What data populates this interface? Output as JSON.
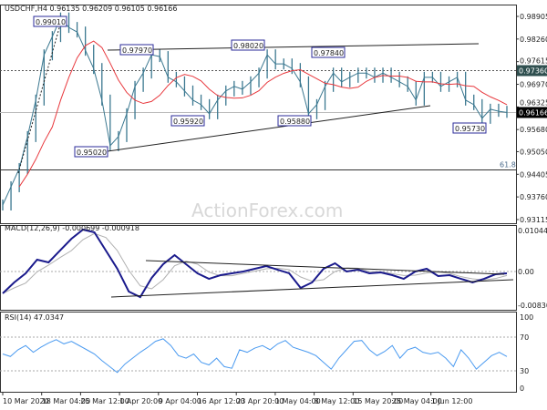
{
  "chart_data": [
    {
      "type": "line",
      "title": "USDCHF,H4  0.96135 0.96209 0.96105 0.96166",
      "symbol": "USDCHF,H4",
      "ohlc_readout": "0.96135 0.96209 0.96105 0.96166",
      "y_ticks": [
        "0.98905",
        "0.98260",
        "0.97615",
        "0.96970",
        "0.96325",
        "0.95680",
        "0.95050",
        "0.94405",
        "0.93760",
        "0.93115"
      ],
      "ylim": [
        0.93115,
        0.98905
      ],
      "current_price": "0.96166",
      "level_line": "0.97360",
      "fib_label": "61.8",
      "fib_level": 0.9453,
      "watermark": "ActionForex.com",
      "annotations": [
        "0.99010",
        "0.97970",
        "0.98020",
        "0.97840",
        "0.95920",
        "0.95880",
        "0.95020",
        "0.95730"
      ],
      "closes": [
        0.9353,
        0.9405,
        0.9457,
        0.9548,
        0.9652,
        0.9781,
        0.9833,
        0.9886,
        0.9859,
        0.9846,
        0.9794,
        0.9742,
        0.9652,
        0.9522,
        0.9548,
        0.9613,
        0.9691,
        0.9729,
        0.9781,
        0.9776,
        0.9717,
        0.9704,
        0.9678,
        0.9652,
        0.9639,
        0.9613,
        0.9652,
        0.9678,
        0.9691,
        0.9683,
        0.9704,
        0.9729,
        0.9781,
        0.9755,
        0.9755,
        0.9742,
        0.9704,
        0.9613,
        0.9639,
        0.9691,
        0.9729,
        0.9704,
        0.9717,
        0.9729,
        0.9729,
        0.9717,
        0.9729,
        0.9717,
        0.9704,
        0.9691,
        0.9652,
        0.9717,
        0.9717,
        0.9691,
        0.9704,
        0.9717,
        0.9652,
        0.9639,
        0.96,
        0.9626,
        0.962,
        0.9617
      ],
      "colors": {
        "price": "#3b7890",
        "ma": "#e8383d",
        "trend": "#222222",
        "label_border": "#2b2b9a"
      }
    },
    {
      "type": "line",
      "title": "MACD(12,26,9) -0.000699 -0.000918",
      "y_ticks": [
        "0.010442",
        "0.00",
        "-0.008306"
      ],
      "ylim": [
        -0.008306,
        0.010442
      ],
      "macd": [
        -0.00533,
        -0.00266,
        -0.00044,
        0.00289,
        0.00222,
        0.00511,
        0.00799,
        0.01021,
        0.00955,
        0.00511,
        0.00067,
        -0.00488,
        -0.00622,
        -0.00155,
        0.00178,
        0.004,
        0.00178,
        -0.00044,
        -0.00178,
        -0.00089,
        -0.00044,
        0,
        0.00067,
        0.00133,
        0.00044,
        -0.00044,
        -0.004,
        -0.00266,
        0.00067,
        0.002,
        0,
        0.00044,
        -0.00044,
        -0.00022,
        -0.00089,
        -0.00178,
        0,
        0.00067,
        -0.00111,
        -0.00089,
        -0.00178,
        -0.00266,
        -0.00178,
        -0.00067,
        -0.00044
      ],
      "colors": {
        "macd": "#1a1a8c",
        "signal": "#b0b0b0"
      }
    },
    {
      "type": "line",
      "title": "RSI(14) 47.0347",
      "y_ticks": [
        "100",
        "70",
        "30",
        "0"
      ],
      "ylim": [
        0,
        100
      ],
      "rsi": [
        50,
        47,
        55,
        60,
        52,
        58,
        63,
        67,
        62,
        65,
        60,
        55,
        50,
        42,
        35,
        28,
        38,
        45,
        52,
        58,
        65,
        68,
        60,
        48,
        45,
        50,
        40,
        37,
        45,
        35,
        33,
        55,
        52,
        57,
        60,
        55,
        62,
        66,
        58,
        55,
        52,
        48,
        40,
        32,
        45,
        55,
        65,
        66,
        55,
        48,
        53,
        60,
        45,
        55,
        58,
        52,
        50,
        52,
        45,
        35,
        55,
        45,
        32,
        40,
        48,
        52,
        47
      ],
      "colors": {
        "rsi": "#4a9af0"
      }
    }
  ],
  "x_axis": {
    "labels": [
      "10 Mar 2020",
      "18 Mar 04:00",
      "25 Mar 12:00",
      "1 Apr 20:00",
      "9 Apr 04:00",
      "16 Apr 12:00",
      "23 Apr 20:00",
      "1 May 04:00",
      "8 May 12:00",
      "15 May 20:00",
      "25 May 04:00",
      "1 Jun 12:00"
    ]
  }
}
